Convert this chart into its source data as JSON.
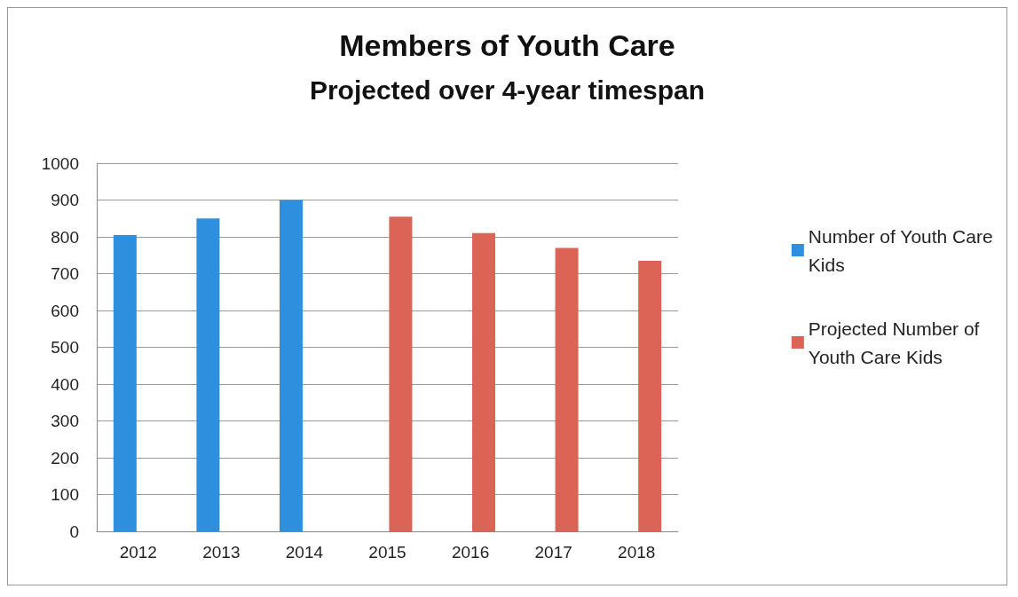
{
  "chart_data": {
    "type": "bar",
    "title": "Members of Youth Care",
    "subtitle": "Projected over 4-year timespan",
    "categories": [
      "2012",
      "2013",
      "2014",
      "2015",
      "2016",
      "2017",
      "2018"
    ],
    "series": [
      {
        "name": "Number of Youth Care Kids",
        "color": "#2e8fdf",
        "values": [
          805,
          850,
          900,
          null,
          null,
          null,
          null
        ]
      },
      {
        "name": "Projected Number of Youth Care Kids",
        "color": "#dc6456",
        "values": [
          null,
          null,
          null,
          855,
          810,
          770,
          735
        ]
      }
    ],
    "ylim": [
      0,
      1000
    ],
    "yticks": [
      0,
      100,
      200,
      300,
      400,
      500,
      600,
      700,
      800,
      900,
      1000
    ],
    "grid": "y",
    "legend": "right"
  }
}
